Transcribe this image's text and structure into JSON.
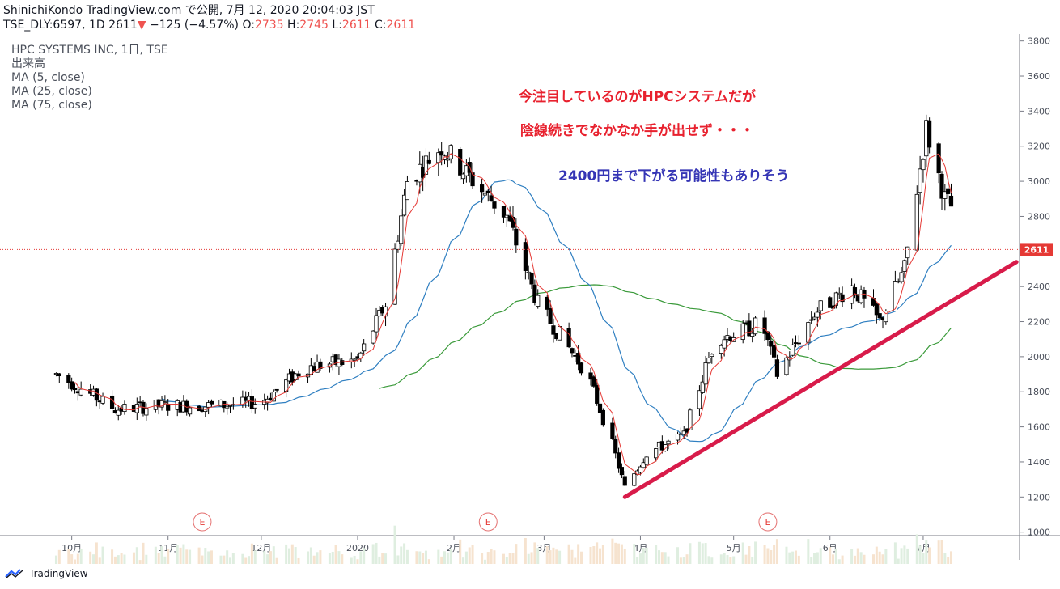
{
  "header": {
    "line1": "ShinichiKondo TradingView.com で公開, 7月 12, 2020 20:04:03 JST",
    "symbol": "TSE_DLY:6597, 1D",
    "last": "2611",
    "arrow": "▼",
    "change": "−125 (−4.57%)",
    "o_label": "O:",
    "o": "2735",
    "h_label": "H:",
    "h": "2745",
    "l_label": "L:",
    "l": "2611",
    "c_label": "C:",
    "c": "2611"
  },
  "legend": {
    "title": "HPC SYSTEMS INC, 1日, TSE",
    "volume": "出来高",
    "ma5": "MA (5, close)",
    "ma25": "MA (25, close)",
    "ma75": "MA (75, close)"
  },
  "annotations": {
    "line1": "今注目しているのがHPCシステムだが",
    "line2": "陰線続きでなかなか手が出せず・・・",
    "line3": "2400円まで下がる可能性もありそう"
  },
  "colors": {
    "up_candle": "#ffffff",
    "down_candle": "#000000",
    "ma5": "#e53935",
    "ma25": "#2f7fc1",
    "ma75": "#3a9a3a",
    "trendline": "#d81b4a",
    "price_line": "#e53935",
    "annotation_red": "#e8212e",
    "annotation_blue": "#3535b5"
  },
  "footer": {
    "brand": "TradingView",
    "icon": "tradingview-logo-icon"
  },
  "chart_data": {
    "type": "candlestick",
    "title": "HPC SYSTEMS INC, 1日, TSE",
    "ylim": [
      980,
      3840
    ],
    "y_ticks": [
      1000,
      1200,
      1400,
      1600,
      1800,
      2000,
      2200,
      2400,
      2600,
      2800,
      3000,
      3200,
      3400,
      3600,
      3800
    ],
    "x_labels": [
      "10月",
      "11月",
      "12月",
      "2020",
      "2月",
      "3月",
      "4月",
      "5月",
      "6月",
      "7月"
    ],
    "last_price": 2611,
    "earnings_markers": [
      "E",
      "E",
      "E"
    ],
    "anchors": [
      [
        "2019-09-26",
        1900
      ],
      [
        "2019-10-03",
        1830
      ],
      [
        "2019-10-15",
        1700
      ],
      [
        "2019-10-30",
        1720
      ],
      [
        "2019-11-15",
        1720
      ],
      [
        "2019-12-01",
        1740
      ],
      [
        "2019-12-15",
        1940
      ],
      [
        "2020-01-01",
        1980
      ],
      [
        "2020-01-10",
        2300
      ],
      [
        "2020-01-17",
        3000
      ],
      [
        "2020-01-28",
        3200
      ],
      [
        "2020-02-10",
        2950
      ],
      [
        "2020-02-18",
        2800
      ],
      [
        "2020-02-28",
        2300
      ],
      [
        "2020-03-05",
        2150
      ],
      [
        "2020-03-15",
        1900
      ],
      [
        "2020-03-23",
        1500
      ],
      [
        "2020-03-27",
        1250
      ],
      [
        "2020-04-03",
        1450
      ],
      [
        "2020-04-15",
        1550
      ],
      [
        "2020-04-25",
        2100
      ],
      [
        "2020-05-05",
        2150
      ],
      [
        "2020-05-10",
        2200
      ],
      [
        "2020-05-15",
        1900
      ],
      [
        "2020-05-27",
        2250
      ],
      [
        "2020-06-08",
        2400
      ],
      [
        "2020-06-17",
        2200
      ],
      [
        "2020-06-25",
        2500
      ],
      [
        "2020-07-02",
        3300
      ],
      [
        "2020-07-08",
        2900
      ],
      [
        "2020-07-15",
        2750
      ],
      [
        "2020-07-23",
        2611
      ]
    ],
    "series": [
      {
        "name": "MA (5, close)",
        "period": 5
      },
      {
        "name": "MA (25, close)",
        "period": 25
      },
      {
        "name": "MA (75, close)",
        "period": 75
      }
    ],
    "trendline": [
      [
        "2020-03-27",
        1200
      ],
      [
        "2020-07-31",
        2540
      ]
    ]
  }
}
